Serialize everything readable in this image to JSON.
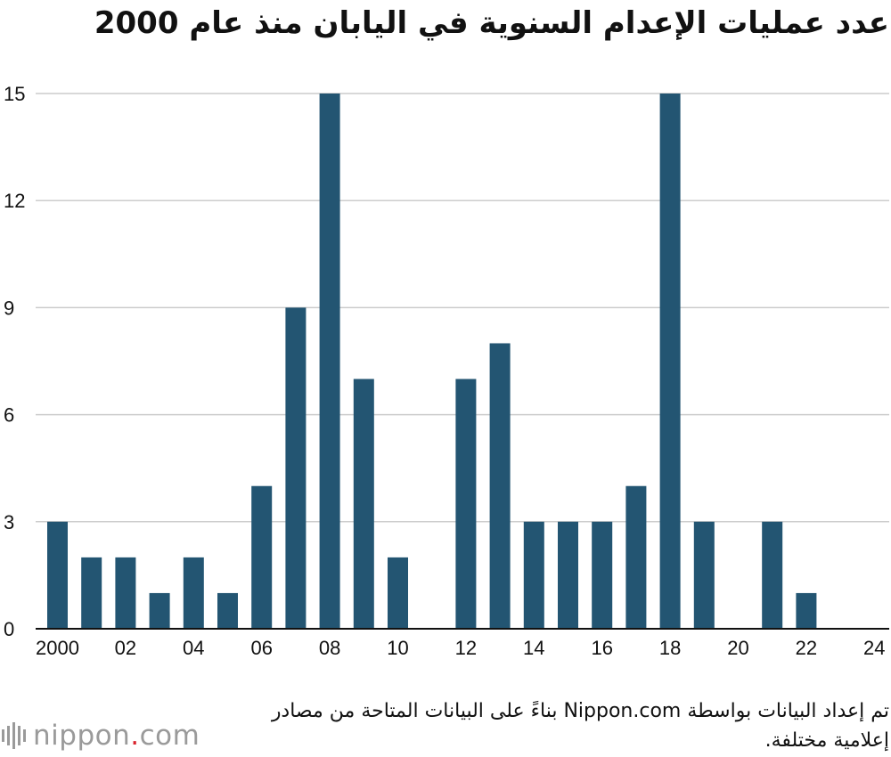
{
  "header": {
    "title": "عدد عمليات الإعدام السنوية في اليابان منذ عام 2000"
  },
  "chart_data": {
    "type": "bar",
    "categories": [
      "2000",
      "2001",
      "2002",
      "2003",
      "2004",
      "2005",
      "2006",
      "2007",
      "2008",
      "2009",
      "2010",
      "2011",
      "2012",
      "2013",
      "2014",
      "2015",
      "2016",
      "2017",
      "2018",
      "2019",
      "2020",
      "2021",
      "2022",
      "2023",
      "2024"
    ],
    "values": [
      3,
      2,
      2,
      1,
      2,
      1,
      4,
      9,
      15,
      7,
      2,
      0,
      7,
      8,
      3,
      3,
      3,
      4,
      15,
      3,
      0,
      3,
      1,
      0,
      0
    ],
    "x_tick_labels": [
      "2000",
      "02",
      "04",
      "06",
      "08",
      "10",
      "12",
      "14",
      "16",
      "18",
      "20",
      "22",
      "24"
    ],
    "y_ticks": [
      0,
      3,
      6,
      9,
      12,
      15
    ],
    "ylim": [
      0,
      15
    ],
    "grid": true,
    "bar_color": "#235572",
    "xlabel": "",
    "ylabel": ""
  },
  "footer": {
    "source": "تم إعداد البيانات بواسطة Nippon.com بناءً على البيانات المتاحة من مصادر إعلامية مختلفة.",
    "logo_name": "nippon",
    "logo_dot": ".",
    "logo_tld": "com"
  }
}
